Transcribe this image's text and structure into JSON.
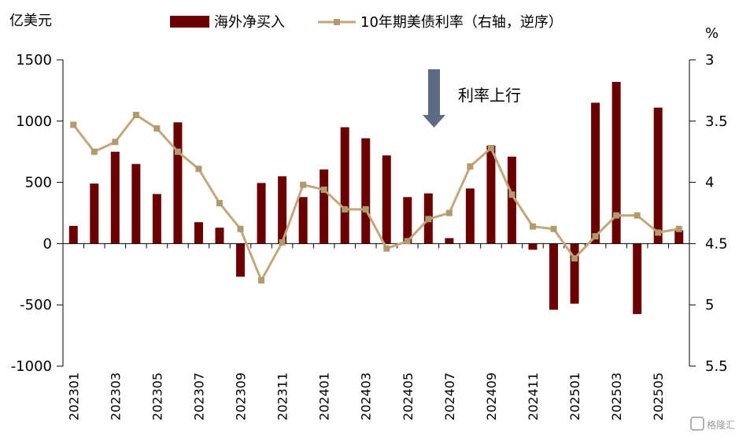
{
  "chart_data": {
    "type": "bar+line",
    "left_axis": {
      "unit": "亿美元",
      "ylim": [
        -1000,
        1500
      ],
      "ticks": [
        1500,
        1000,
        500,
        0,
        -500,
        -1000
      ]
    },
    "right_axis": {
      "unit": "%",
      "ylim": [
        3,
        5.5
      ],
      "inverted": true,
      "ticks": [
        3,
        3.5,
        4,
        4.5,
        5,
        5.5
      ]
    },
    "x": [
      "202301",
      "202302",
      "202303",
      "202304",
      "202305",
      "202306",
      "202307",
      "202308",
      "202309",
      "202310",
      "202311",
      "202312",
      "202401",
      "202402",
      "202403",
      "202404",
      "202405",
      "202406",
      "202407",
      "202408",
      "202409",
      "202410",
      "202411",
      "202412",
      "202501",
      "202502",
      "202503",
      "202504",
      "202505",
      "202506"
    ],
    "x_tick_labels": [
      "202301",
      "",
      "202303",
      "",
      "202305",
      "",
      "202307",
      "",
      "202309",
      "",
      "202311",
      "",
      "202401",
      "",
      "202403",
      "",
      "202405",
      "",
      "202407",
      "",
      "202409",
      "",
      "202411",
      "",
      "202501",
      "",
      "202503",
      "",
      "202505",
      ""
    ],
    "series": [
      {
        "name": "海外净买入",
        "type": "bar",
        "axis": "left",
        "color": "#6b0000",
        "values": [
          145,
          490,
          750,
          650,
          405,
          990,
          175,
          130,
          -270,
          495,
          550,
          380,
          605,
          950,
          860,
          720,
          380,
          410,
          45,
          450,
          800,
          710,
          -50,
          -540,
          -490,
          1150,
          1320,
          -575,
          1110,
          110
        ]
      },
      {
        "name": "10年期美债利率（右轴，逆序）",
        "type": "line",
        "axis": "right",
        "color": "#c4a67a",
        "values": [
          3.53,
          3.75,
          3.67,
          3.45,
          3.56,
          3.75,
          3.89,
          4.17,
          4.38,
          4.8,
          4.49,
          4.02,
          4.06,
          4.22,
          4.22,
          4.54,
          4.48,
          4.3,
          4.25,
          3.87,
          3.72,
          4.1,
          4.36,
          4.38,
          4.62,
          4.44,
          4.27,
          4.27,
          4.41,
          4.38
        ]
      }
    ],
    "annotation": {
      "text": "利率上行",
      "arrow": "down"
    },
    "watermark": "格隆汇"
  }
}
